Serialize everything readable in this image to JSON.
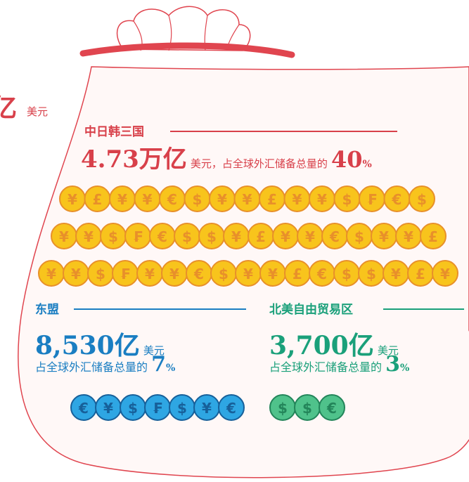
{
  "cropped_label": {
    "amount": "亿",
    "unit": "美元"
  },
  "regions": [
    {
      "name": "中日韩三国",
      "amount": "4.73万亿",
      "unit_text": "美元，占全球外汇储备总量的",
      "share": 40,
      "percent_sign": "%",
      "coin_rows": [
        [
          "¥",
          "£",
          "¥",
          "¥",
          "€",
          "$",
          "¥",
          "¥",
          "£",
          "¥",
          "¥",
          "$",
          "₣",
          "€",
          "$"
        ],
        [
          "¥",
          "¥",
          "$",
          "₣",
          "€",
          "$",
          "$",
          "¥",
          "£",
          "¥",
          "¥",
          "€",
          "$",
          "¥",
          "¥",
          "£"
        ],
        [
          "¥",
          "¥",
          "$",
          "₣",
          "¥",
          "¥",
          "€",
          "$",
          "¥",
          "¥",
          "£",
          "€",
          "$",
          "$",
          "¥",
          "£",
          "¥"
        ]
      ]
    },
    {
      "name": "东盟",
      "amount": "8,530亿",
      "unit_text": "美元",
      "share_text": "占全球外汇储备总量的",
      "share": 7,
      "percent_sign": "%",
      "coin_rows": [
        [
          "€",
          "¥",
          "$",
          "₣",
          "$",
          "¥",
          "€"
        ]
      ]
    },
    {
      "name": "北美自由贸易区",
      "amount": "3,700亿",
      "unit_text": "美元",
      "share_text": "占全球外汇储备总量的",
      "share": 3,
      "percent_sign": "%",
      "coin_rows": [
        [
          "$",
          "$",
          "€"
        ]
      ]
    }
  ]
}
